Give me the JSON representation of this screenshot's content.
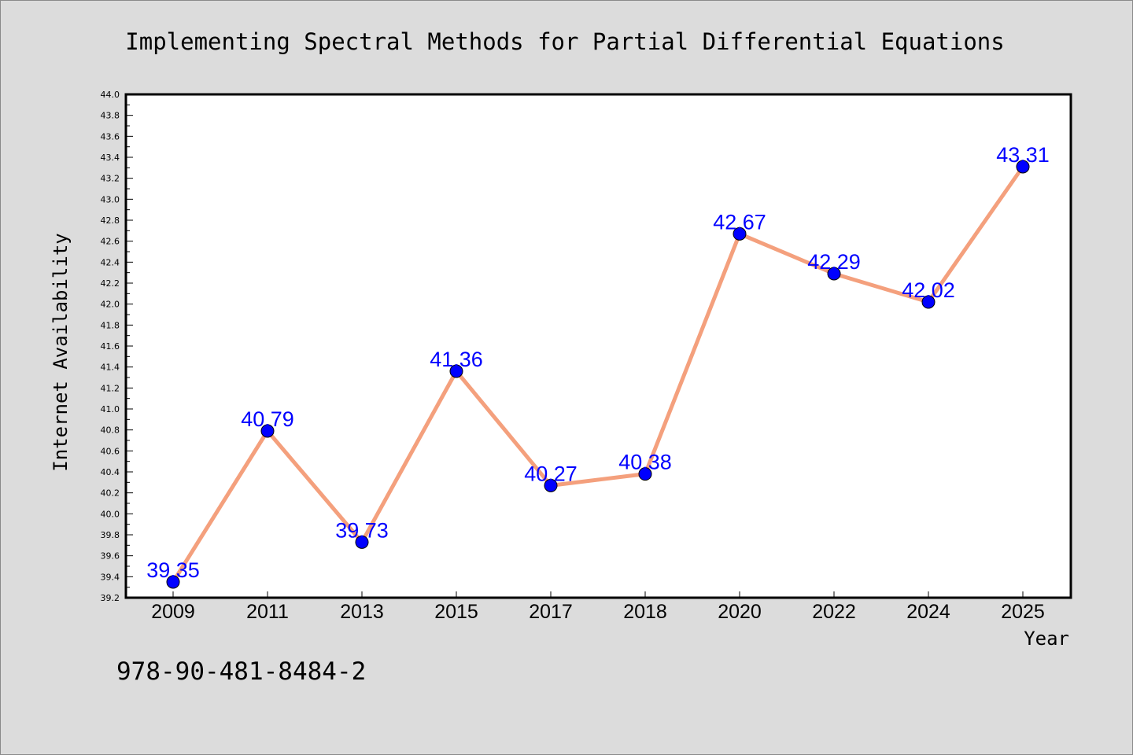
{
  "isbn": "978-90-481-8484-2",
  "colors": {
    "background": "#dcdcdc",
    "plot_background": "#ffffff",
    "line": "#f4a07d",
    "marker": "#0000ff",
    "data_label": "#0000ff"
  },
  "chart_data": {
    "type": "line",
    "title": "Implementing Spectral Methods for Partial Differential Equations",
    "xlabel": "Year",
    "ylabel": "Internet Availability",
    "categories": [
      "2009",
      "2011",
      "2013",
      "2015",
      "2017",
      "2018",
      "2020",
      "2022",
      "2024",
      "2025"
    ],
    "values": [
      39.35,
      40.79,
      39.73,
      41.36,
      40.27,
      40.38,
      42.67,
      42.29,
      42.02,
      43.31
    ],
    "data_labels": [
      "39.35",
      "40.79",
      "39.73",
      "41.36",
      "40.27",
      "40.38",
      "42.67",
      "42.29",
      "42.02",
      "43.31"
    ],
    "ylim": [
      39.2,
      44.0
    ],
    "yticks": [
      "39.2",
      "39.4",
      "39.6",
      "39.8",
      "40.0",
      "40.2",
      "40.4",
      "40.6",
      "40.8",
      "41.0",
      "41.2",
      "41.4",
      "41.6",
      "41.8",
      "42.0",
      "42.2",
      "42.4",
      "42.6",
      "42.8",
      "43.0",
      "43.2",
      "43.4",
      "43.6",
      "43.8",
      "44.0"
    ],
    "grid": false,
    "legend": "none"
  }
}
